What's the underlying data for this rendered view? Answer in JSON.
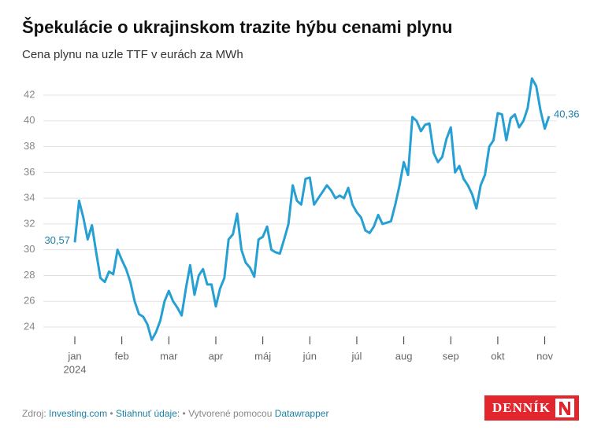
{
  "chart_data": {
    "type": "line",
    "title": "Špekulácie o ukrajinskom trazite hýbu cenami plynu",
    "subtitle": "Cena plynu na uzle TTF v eurách za MWh",
    "x_year_label": "2024",
    "categories": [
      "jan",
      null,
      null,
      null,
      null,
      null,
      null,
      null,
      null,
      null,
      null,
      "feb",
      null,
      null,
      null,
      null,
      null,
      null,
      null,
      null,
      null,
      null,
      "mar",
      null,
      null,
      null,
      null,
      null,
      null,
      null,
      null,
      null,
      null,
      "apr",
      null,
      null,
      null,
      null,
      null,
      null,
      null,
      null,
      null,
      null,
      "máj",
      null,
      null,
      null,
      null,
      null,
      null,
      null,
      null,
      null,
      null,
      "jún",
      null,
      null,
      null,
      null,
      null,
      null,
      null,
      null,
      null,
      null,
      "júl",
      null,
      null,
      null,
      null,
      null,
      null,
      null,
      null,
      null,
      null,
      "aug",
      null,
      null,
      null,
      null,
      null,
      null,
      null,
      null,
      null,
      null,
      "sep",
      null,
      null,
      null,
      null,
      null,
      null,
      null,
      null,
      null,
      null,
      "okt",
      null,
      null,
      null,
      null,
      null,
      null,
      null,
      null,
      null,
      null,
      "nov",
      null
    ],
    "series": [
      {
        "name": "TTF",
        "color": "#26a0d3",
        "values": [
          30.57,
          33.8,
          32.5,
          30.8,
          31.9,
          29.8,
          27.8,
          27.5,
          28.3,
          28.1,
          30.0,
          29.2,
          28.5,
          27.5,
          26.0,
          25.0,
          24.8,
          24.2,
          23.0,
          23.6,
          24.5,
          26.0,
          26.8,
          26.0,
          25.5,
          24.9,
          27.0,
          28.8,
          26.5,
          28.0,
          28.5,
          27.3,
          27.3,
          25.6,
          27.0,
          27.8,
          30.8,
          31.2,
          32.8,
          30.0,
          29.0,
          28.6,
          27.9,
          30.8,
          31.0,
          31.8,
          30.0,
          29.8,
          29.7,
          30.8,
          32.0,
          35.0,
          33.8,
          33.5,
          35.5,
          35.6,
          33.5,
          34.0,
          34.5,
          35.0,
          34.6,
          34.0,
          34.2,
          34.0,
          34.8,
          33.5,
          32.9,
          32.5,
          31.5,
          31.3,
          31.8,
          32.7,
          32.0,
          32.1,
          32.2,
          33.5,
          35.0,
          36.8,
          35.8,
          40.3,
          40.0,
          39.2,
          39.7,
          39.8,
          37.5,
          36.8,
          37.2,
          38.6,
          39.5,
          36.0,
          36.5,
          35.5,
          35.0,
          34.3,
          33.2,
          35.0,
          35.8,
          38.0,
          38.5,
          40.6,
          40.5,
          38.5,
          40.2,
          40.5,
          39.5,
          40.0,
          41.0,
          43.3,
          42.7,
          40.8,
          39.4,
          40.36
        ],
        "value_labels": [
          "30,57",
          null,
          null,
          null,
          null,
          null,
          null,
          null,
          null,
          null,
          null,
          null,
          null,
          null,
          null,
          null,
          null,
          null,
          null,
          null,
          null,
          null,
          null,
          null,
          null,
          null,
          null,
          null,
          null,
          null,
          null,
          null,
          null,
          null,
          null,
          null,
          null,
          null,
          null,
          null,
          null,
          null,
          null,
          null,
          null,
          null,
          null,
          null,
          null,
          null,
          null,
          null,
          null,
          null,
          null,
          null,
          null,
          null,
          null,
          null,
          null,
          null,
          null,
          null,
          null,
          null,
          null,
          null,
          null,
          null,
          null,
          null,
          null,
          null,
          null,
          null,
          null,
          null,
          null,
          null,
          null,
          null,
          null,
          null,
          null,
          null,
          null,
          null,
          null,
          null,
          null,
          null,
          null,
          null,
          null,
          null,
          null,
          null,
          null,
          null,
          null,
          null,
          null,
          null,
          null,
          null,
          null,
          null,
          null,
          null,
          null,
          "40,36"
        ]
      }
    ],
    "ylim": [
      22.5,
      43.8
    ],
    "yticks": [
      24,
      26,
      28,
      30,
      32,
      34,
      36,
      38,
      40,
      42
    ],
    "grid": true
  },
  "footer": {
    "source_label": "Zdroj:",
    "source": "Investing.com",
    "separator": "•",
    "download": "Stiahnuť údaje:",
    "credit_prefix": "Vytvorené pomocou",
    "credit": "Datawrapper",
    "logo": "DENNÍK"
  }
}
